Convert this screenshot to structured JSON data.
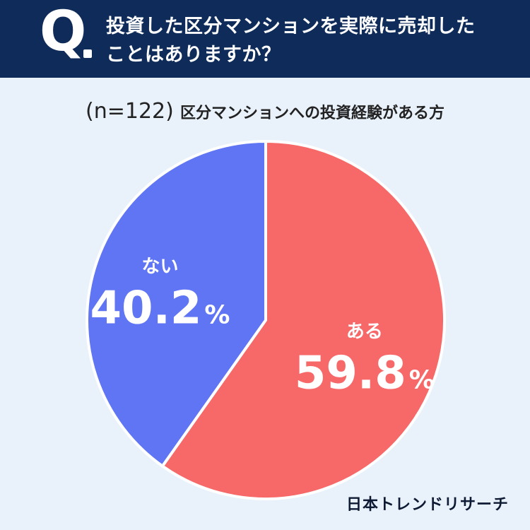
{
  "header": {
    "q_letter": "Q",
    "question_line1": "投資した区分マンションを実際に売却した",
    "question_line2": "ことはありますか？"
  },
  "subtitle": {
    "n": "(n=122)",
    "desc": "区分マンションへの投資経験がある方"
  },
  "chart_data": {
    "type": "pie",
    "slices": [
      {
        "label": "ある",
        "value": 59.8,
        "display": "59.8",
        "unit": "%",
        "color": "#f76868"
      },
      {
        "label": "ない",
        "value": 40.2,
        "display": "40.2",
        "unit": "%",
        "color": "#5f75f4"
      }
    ],
    "start": "12 o'clock",
    "direction": "clockwise"
  },
  "brand": "日本トレンドリサーチ"
}
